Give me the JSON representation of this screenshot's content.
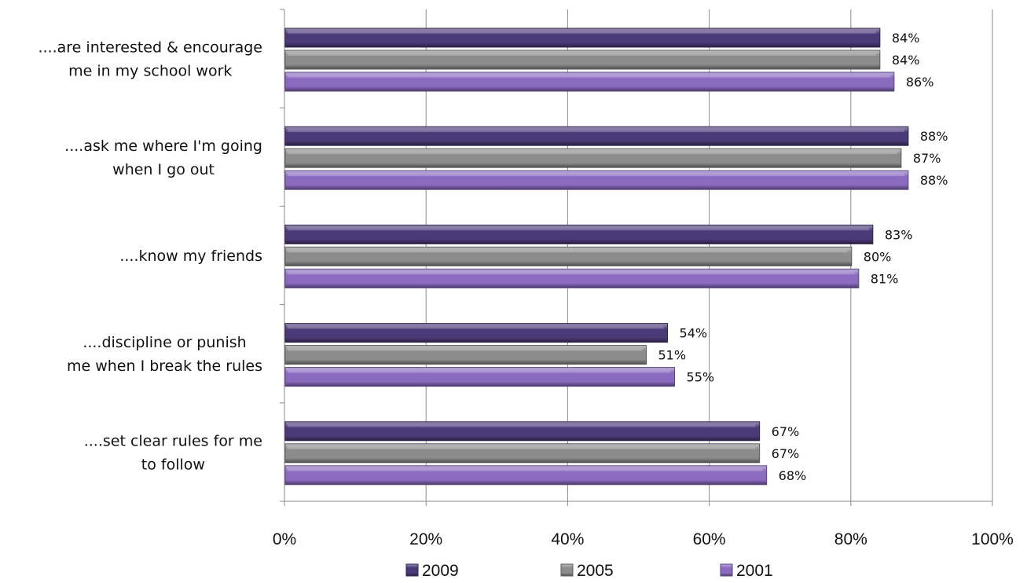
{
  "chart_data": {
    "type": "bar",
    "orientation": "horizontal",
    "categories": [
      [
        "....are interested & encourage",
        "me in my school work"
      ],
      [
        "....ask me where I'm going",
        "when I go out"
      ],
      [
        "....know my friends"
      ],
      [
        "....discipline or punish",
        "me when I break the rules"
      ],
      [
        "....set clear rules for me",
        "to follow"
      ]
    ],
    "series": [
      {
        "name": "2009",
        "values": [
          84,
          88,
          83,
          54,
          67
        ],
        "color": "#4b3a78"
      },
      {
        "name": "2005",
        "values": [
          84,
          87,
          80,
          51,
          67
        ],
        "color": "#8c8c8c"
      },
      {
        "name": "2001",
        "values": [
          86,
          88,
          81,
          55,
          68
        ],
        "color": "#8a6bc0"
      }
    ],
    "value_labels": [
      [
        "84%",
        "88%",
        "83%",
        "54%",
        "67%"
      ],
      [
        "84%",
        "87%",
        "80%",
        "51%",
        "67%"
      ],
      [
        "86%",
        "88%",
        "81%",
        "55%",
        "68%"
      ]
    ],
    "xlim": [
      0,
      100
    ],
    "xticks": [
      "0%",
      "20%",
      "40%",
      "60%",
      "80%",
      "100%"
    ],
    "grid": "vertical",
    "legend_position": "bottom"
  }
}
